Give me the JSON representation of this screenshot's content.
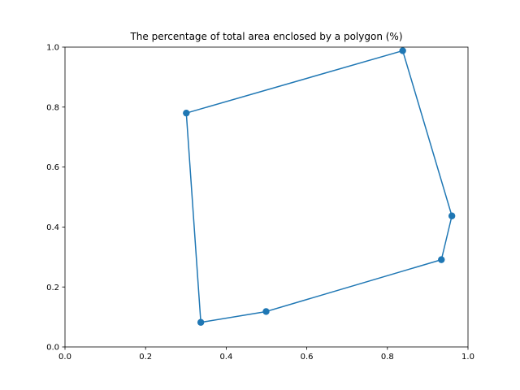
{
  "chart_data": {
    "type": "line",
    "title": "The percentage of total area enclosed by a polygon (%)",
    "xlabel": "",
    "ylabel": "",
    "xlim": [
      0.0,
      1.0
    ],
    "ylim": [
      0.0,
      1.0
    ],
    "x_ticks": [
      "0.0",
      "0.2",
      "0.4",
      "0.6",
      "0.8",
      "1.0"
    ],
    "y_ticks": [
      "0.0",
      "0.2",
      "0.4",
      "0.6",
      "0.8",
      "1.0"
    ],
    "grid": false,
    "closed": true,
    "series": [
      {
        "color": "#1f77b4",
        "marker": "circle",
        "points": [
          {
            "x": 0.838,
            "y": 0.988
          },
          {
            "x": 0.96,
            "y": 0.437
          },
          {
            "x": 0.934,
            "y": 0.291
          },
          {
            "x": 0.499,
            "y": 0.118
          },
          {
            "x": 0.337,
            "y": 0.082
          },
          {
            "x": 0.301,
            "y": 0.78
          }
        ]
      }
    ]
  }
}
